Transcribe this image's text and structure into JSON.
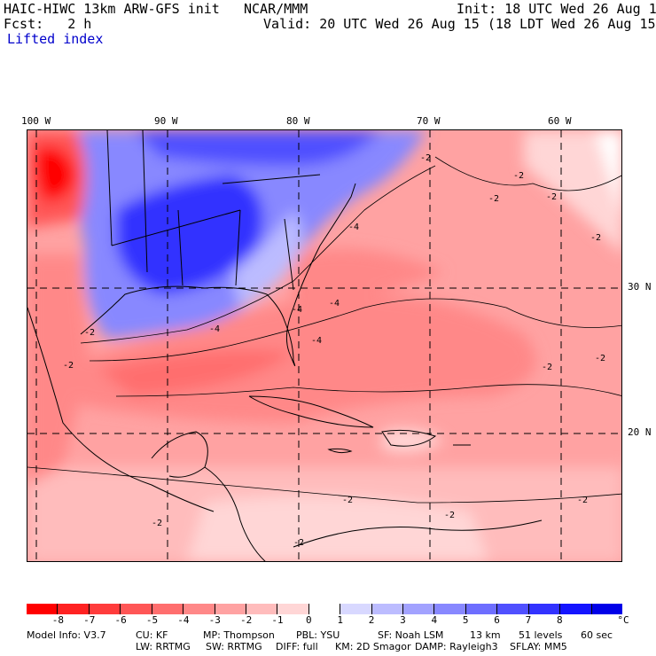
{
  "header": {
    "model_title": "HAIC-HIWC 13km ARW-GFS init",
    "org": "NCAR/MMM",
    "init": "Init: 18 UTC Wed 26 Aug 15",
    "fcst": "Fcst:   2 h",
    "valid": "Valid: 20 UTC Wed 26 Aug 15 (18 LDT Wed 26 Aug 15)",
    "field": "Lifted index"
  },
  "map": {
    "lon_labels": [
      "100 W",
      "90 W",
      "80 W",
      "70 W",
      "60 W"
    ],
    "lat_labels": [
      "30 N",
      "20 N"
    ],
    "contour_labels": [
      "-2",
      "-2",
      "-2",
      "-2",
      "-4",
      "-4",
      "-4",
      "-2",
      "-2",
      "-4",
      "-2",
      "-2",
      "-2",
      "-2",
      "-4",
      "-2",
      "-2",
      "-2",
      "-2"
    ]
  },
  "colorbar": {
    "labels": [
      "-8",
      "-7",
      "-6",
      "-5",
      "-4",
      "-3",
      "-2",
      "-1",
      "0",
      "1",
      "2",
      "3",
      "4",
      "5",
      "6",
      "7",
      "8"
    ],
    "unit": "°C",
    "colors": [
      "#ff0000",
      "#ff2222",
      "#ff3c3c",
      "#ff5656",
      "#ff6e6e",
      "#ff8888",
      "#ffa2a2",
      "#ffbcbc",
      "#ffd6d6",
      "#ffffff",
      "#d8d8ff",
      "#bcbcff",
      "#a2a2ff",
      "#8888ff",
      "#6e6eff",
      "#5050ff",
      "#3232ff",
      "#1414ff",
      "#0000e8"
    ]
  },
  "footer": {
    "line1": [
      "Model Info: V3.7",
      "CU: KF",
      "MP: Thompson",
      "PBL: YSU",
      "SF: Noah LSM",
      "13 km",
      "51 levels",
      "60 sec"
    ],
    "line2": [
      "LW: RRTMG",
      "SW: RRTMG",
      "DIFF: full",
      "KM: 2D Smagor",
      "DAMP: Rayleigh3",
      "SFLAY: MM5"
    ]
  }
}
